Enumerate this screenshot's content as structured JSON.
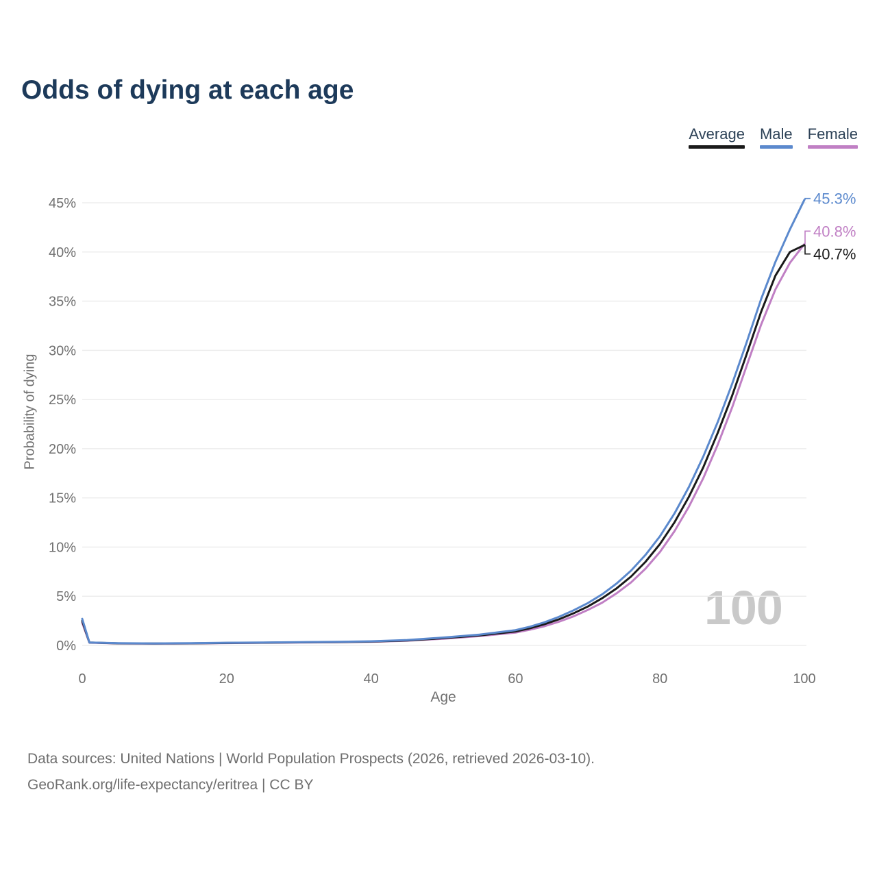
{
  "title": "Odds of dying at each age",
  "legend": [
    {
      "label": "Average",
      "color": "#1a1a1a"
    },
    {
      "label": "Male",
      "color": "#5b89cd"
    },
    {
      "label": "Female",
      "color": "#c07fc4"
    }
  ],
  "watermark": "100",
  "footer": {
    "line1": "Data sources: United Nations | World Population Prospects (2026, retrieved 2026-03-10).",
    "line2": "GeoRank.org/life-expectancy/eritrea | CC BY"
  },
  "chart_data": {
    "type": "line",
    "title": "Odds of dying at each age",
    "xlabel": "Age",
    "ylabel": "Probability of dying",
    "xlim": [
      0,
      100
    ],
    "ylim": [
      0,
      45
    ],
    "x_ticks": [
      0,
      20,
      40,
      60,
      80,
      100
    ],
    "y_ticks": [
      0,
      5,
      10,
      15,
      20,
      25,
      30,
      35,
      40,
      45
    ],
    "y_tick_suffix": "%",
    "grid": "horizontal",
    "legend_position": "top-right",
    "x": [
      0,
      1,
      5,
      10,
      15,
      20,
      25,
      30,
      35,
      40,
      45,
      50,
      55,
      60,
      62,
      64,
      66,
      68,
      70,
      72,
      74,
      76,
      78,
      80,
      82,
      84,
      86,
      88,
      90,
      92,
      94,
      96,
      98,
      100
    ],
    "series": [
      {
        "name": "Female",
        "color": "#c07fc4",
        "end_label": "40.8%",
        "end_label_offset": -19,
        "values": [
          2.3,
          0.28,
          0.2,
          0.18,
          0.2,
          0.24,
          0.27,
          0.29,
          0.32,
          0.37,
          0.48,
          0.68,
          0.95,
          1.3,
          1.6,
          1.95,
          2.4,
          2.95,
          3.6,
          4.35,
          5.3,
          6.4,
          7.8,
          9.5,
          11.6,
          14.1,
          17.0,
          20.4,
          24.2,
          28.4,
          32.6,
          36.2,
          38.9,
          40.8
        ]
      },
      {
        "name": "Average",
        "color": "#1a1a1a",
        "end_label": "40.7%",
        "end_label_offset": 13,
        "values": [
          2.5,
          0.29,
          0.21,
          0.19,
          0.21,
          0.25,
          0.28,
          0.31,
          0.34,
          0.39,
          0.51,
          0.74,
          1.02,
          1.42,
          1.75,
          2.15,
          2.65,
          3.25,
          3.95,
          4.8,
          5.8,
          7.0,
          8.5,
          10.3,
          12.5,
          15.1,
          18.1,
          21.6,
          25.4,
          29.6,
          33.9,
          37.6,
          40.0,
          40.7
        ]
      },
      {
        "name": "Male",
        "color": "#5b89cd",
        "end_label": "45.3%",
        "end_label_offset": -2,
        "values": [
          2.7,
          0.3,
          0.22,
          0.2,
          0.22,
          0.27,
          0.3,
          0.33,
          0.36,
          0.42,
          0.55,
          0.8,
          1.1,
          1.55,
          1.9,
          2.35,
          2.9,
          3.55,
          4.3,
          5.2,
          6.3,
          7.6,
          9.2,
          11.1,
          13.4,
          16.1,
          19.2,
          22.7,
          26.6,
          30.8,
          35.2,
          39.0,
          42.3,
          45.3
        ]
      }
    ]
  }
}
